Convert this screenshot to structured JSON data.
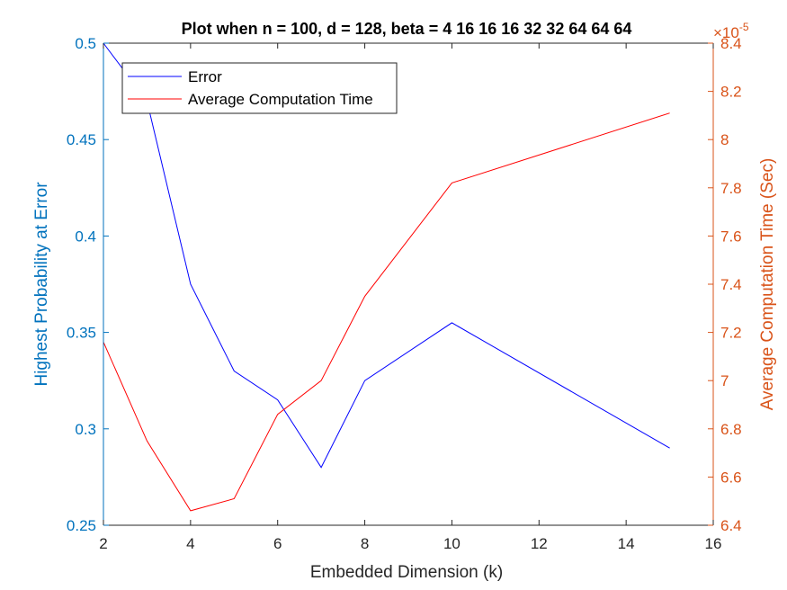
{
  "chart_data": {
    "type": "line",
    "title": "Plot when n = 100, d = 128, beta = 4  16  16  16  32  32  64  64  64",
    "xlabel": "Embedded Dimension (k)",
    "ylabel_left": "Highest Probability at Error",
    "ylabel_right": "Average Computation Time (Sec)",
    "right_exponent_label": "×10",
    "right_exponent_power": "-5",
    "xlim": [
      2,
      16
    ],
    "ylim_left": [
      0.25,
      0.5
    ],
    "ylim_right": [
      6.4,
      8.4
    ],
    "right_scale": "1e-5",
    "x_ticks": [
      2,
      4,
      6,
      8,
      10,
      12,
      14,
      16
    ],
    "x_tick_labels": [
      "2",
      "4",
      "6",
      "8",
      "10",
      "12",
      "14",
      "16"
    ],
    "y_left_ticks": [
      0.25,
      0.3,
      0.35,
      0.4,
      0.45,
      0.5
    ],
    "y_left_tick_labels": [
      "0.25",
      "0.3",
      "0.35",
      "0.4",
      "0.45",
      "0.5"
    ],
    "y_right_ticks": [
      6.4,
      6.6,
      6.8,
      7.0,
      7.2,
      7.4,
      7.6,
      7.8,
      8.0,
      8.2,
      8.4
    ],
    "y_right_tick_labels": [
      "6.4",
      "6.6",
      "6.8",
      "7",
      "7.2",
      "7.4",
      "7.6",
      "7.8",
      "8",
      "8.2",
      "8.4"
    ],
    "grid": false,
    "legend_position": "top-left",
    "series": [
      {
        "name": "Error",
        "axis": "left",
        "color": "#0000FF",
        "x": [
          2,
          3,
          4,
          5,
          6,
          7,
          8,
          10,
          15
        ],
        "y": [
          0.5,
          0.47,
          0.375,
          0.33,
          0.315,
          0.28,
          0.325,
          0.355,
          0.29
        ]
      },
      {
        "name": "Average Computation Time",
        "axis": "right",
        "color": "#FF0000",
        "x": [
          2,
          3,
          4,
          5,
          6,
          7,
          8,
          10,
          15
        ],
        "y": [
          7.16,
          6.75,
          6.46,
          6.51,
          6.86,
          7.0,
          7.35,
          7.82,
          8.11
        ]
      }
    ],
    "colors": {
      "left_axis": "#0072BD",
      "right_axis": "#D95319",
      "bottom_axis": "#262626"
    }
  }
}
